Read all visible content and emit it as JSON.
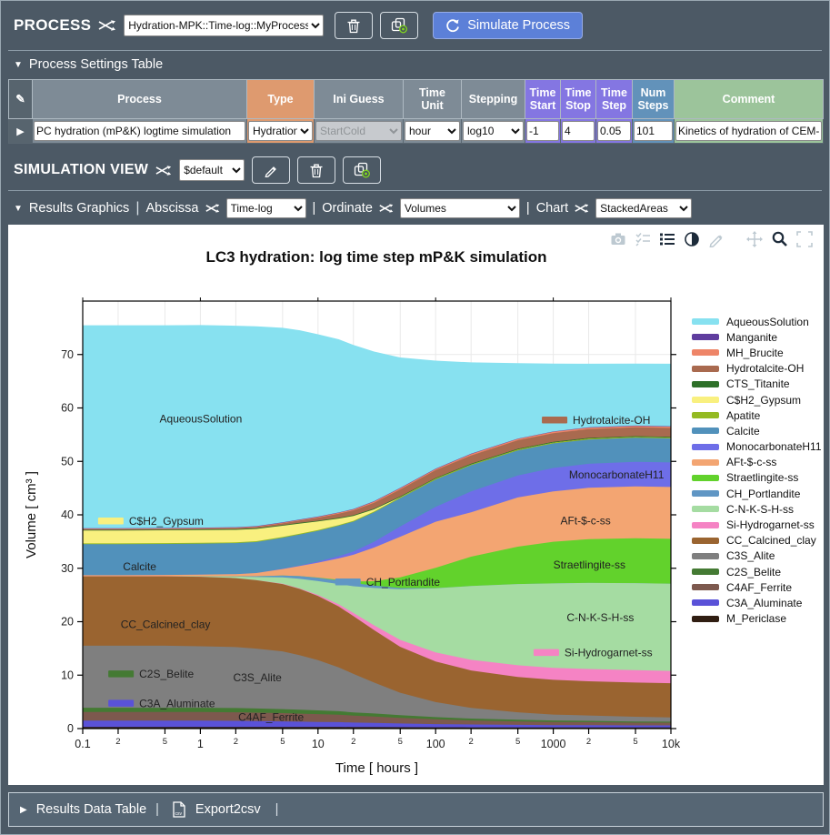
{
  "process_bar": {
    "title": "PROCESS",
    "selector_value": "Hydration-MPK::Time-log::MyProcess",
    "simulate_label": "Simulate Process"
  },
  "settings_section": {
    "title": "Process Settings Table"
  },
  "settings_table": {
    "headers": [
      {
        "label": "Process",
        "color": "#7E8B96"
      },
      {
        "label": "Type",
        "color": "#DE9A6F"
      },
      {
        "label": "Ini Guess",
        "color": "#7E8B96"
      },
      {
        "label": "Time\nUnit",
        "color": "#7E8B96"
      },
      {
        "label": "Stepping",
        "color": "#7E8B96"
      },
      {
        "label": "Time\nStart",
        "color": "#8476E2"
      },
      {
        "label": "Time\nStop",
        "color": "#8476E2"
      },
      {
        "label": "Time\nStep",
        "color": "#8476E2"
      },
      {
        "label": "Num\nSteps",
        "color": "#6292BA"
      },
      {
        "label": "Comment",
        "color": "#9CC49B"
      }
    ],
    "row": {
      "process": "PC hydration (mP&K) logtime simulation",
      "type": "Hydration",
      "ini_guess": "StartCold",
      "time_unit": "hour",
      "stepping": "log10",
      "time_start": "-1",
      "time_stop": "4",
      "time_step": "0.05",
      "num_steps": "101",
      "comment": "Kinetics of hydration of CEM-"
    }
  },
  "simulation_bar": {
    "title": "SIMULATION VIEW",
    "selector_value": "$default"
  },
  "graphics_bar": {
    "section_label": "Results Graphics",
    "abscissa_label": "Abscissa",
    "abscissa_value": "Time-log",
    "ordinate_label": "Ordinate",
    "ordinate_value": "Volumes",
    "chart_label": "Chart",
    "chart_value": "StackedAreas"
  },
  "footer": {
    "results_label": "Results Data Table",
    "export_label": "Export2csv"
  },
  "chart_data": {
    "type": "area",
    "stacked": true,
    "title": "LC3 hydration: log time step mP&K simulation",
    "xlabel": "Time [ hours ]",
    "ylabel": "Volume [ cm³ ]",
    "x_scale": "log",
    "x_range": [
      0.1,
      10000
    ],
    "y_range": [
      0,
      80
    ],
    "grid": true,
    "legend_position": "right",
    "x_ticks": [
      {
        "v": 0.1,
        "label": "0.1",
        "major": true
      },
      {
        "v": 0.2,
        "label": "2",
        "major": false
      },
      {
        "v": 0.5,
        "label": "5",
        "major": false
      },
      {
        "v": 1,
        "label": "1",
        "major": true
      },
      {
        "v": 2,
        "label": "2",
        "major": false
      },
      {
        "v": 5,
        "label": "5",
        "major": false
      },
      {
        "v": 10,
        "label": "10",
        "major": true
      },
      {
        "v": 20,
        "label": "2",
        "major": false
      },
      {
        "v": 50,
        "label": "5",
        "major": false
      },
      {
        "v": 100,
        "label": "100",
        "major": true
      },
      {
        "v": 200,
        "label": "2",
        "major": false
      },
      {
        "v": 500,
        "label": "5",
        "major": false
      },
      {
        "v": 1000,
        "label": "1000",
        "major": true
      },
      {
        "v": 2000,
        "label": "2",
        "major": false
      },
      {
        "v": 5000,
        "label": "5",
        "major": false
      },
      {
        "v": 10000,
        "label": "10k",
        "major": true
      }
    ],
    "y_ticks": [
      0,
      10,
      20,
      30,
      40,
      50,
      60,
      70
    ],
    "x": [
      0.1,
      0.2,
      0.5,
      1,
      2,
      3,
      5,
      7,
      10,
      15,
      20,
      30,
      50,
      100,
      200,
      500,
      1000,
      2000,
      5000,
      10000
    ],
    "series": [
      {
        "name": "M_Periclase",
        "color": "#301E12",
        "values": [
          0.3,
          0.3,
          0.3,
          0.3,
          0.3,
          0.3,
          0.3,
          0.3,
          0.3,
          0.3,
          0.28,
          0.27,
          0.25,
          0.23,
          0.22,
          0.2,
          0.2,
          0.2,
          0.2,
          0.2
        ]
      },
      {
        "name": "C3A_Aluminate",
        "color": "#5A52D8",
        "values": [
          1.2,
          1.2,
          1.2,
          1.2,
          1.15,
          1.1,
          1.05,
          1.0,
          0.95,
          0.9,
          0.85,
          0.8,
          0.7,
          0.6,
          0.55,
          0.5,
          0.45,
          0.45,
          0.4,
          0.4
        ]
      },
      {
        "name": "C4AF_Ferrite",
        "color": "#7D594E",
        "values": [
          1.6,
          1.6,
          1.6,
          1.6,
          1.6,
          1.58,
          1.55,
          1.5,
          1.45,
          1.4,
          1.3,
          1.2,
          1.05,
          0.9,
          0.75,
          0.65,
          0.6,
          0.55,
          0.5,
          0.5
        ]
      },
      {
        "name": "C2S_Belite",
        "color": "#447A33",
        "values": [
          0.8,
          0.8,
          0.8,
          0.8,
          0.8,
          0.78,
          0.75,
          0.72,
          0.7,
          0.65,
          0.6,
          0.55,
          0.5,
          0.42,
          0.35,
          0.3,
          0.27,
          0.25,
          0.22,
          0.2
        ]
      },
      {
        "name": "C3S_Alite",
        "color": "#7F7F7F",
        "values": [
          11.6,
          11.6,
          11.6,
          11.5,
          11.4,
          11.2,
          10.8,
          10.2,
          9.4,
          8.2,
          7.2,
          5.8,
          4.2,
          2.8,
          2.0,
          1.4,
          1.1,
          1.0,
          0.9,
          0.8
        ]
      },
      {
        "name": "CC_Calcined_clay",
        "color": "#9A6430",
        "values": [
          13.0,
          13.0,
          13.0,
          13.0,
          12.9,
          12.8,
          12.6,
          12.4,
          12.0,
          11.4,
          10.8,
          9.8,
          8.6,
          7.6,
          7.0,
          6.6,
          6.5,
          6.4,
          6.4,
          6.4
        ]
      },
      {
        "name": "Si-Hydrogarnet-ss",
        "color": "#F583C4",
        "values": [
          0,
          0,
          0,
          0,
          0,
          0,
          0.05,
          0.1,
          0.2,
          0.4,
          0.6,
          0.9,
          1.3,
          1.7,
          2.0,
          2.2,
          2.25,
          2.3,
          2.3,
          2.3
        ]
      },
      {
        "name": "C-N-K-S-H-ss",
        "color": "#A5DCA2",
        "values": [
          0,
          0,
          0,
          0.1,
          0.3,
          0.6,
          1.2,
          1.8,
          2.6,
          3.8,
          5.0,
          7.0,
          9.5,
          12.0,
          13.8,
          15.2,
          15.8,
          16.1,
          16.3,
          16.3
        ]
      },
      {
        "name": "CH_Portlandite",
        "color": "#6096C4",
        "values": [
          0,
          0,
          0,
          0,
          0.05,
          0.15,
          0.35,
          0.5,
          0.6,
          0.65,
          0.6,
          0.45,
          0.2,
          0.05,
          0,
          0,
          0,
          0,
          0,
          0
        ]
      },
      {
        "name": "Straetlingite-ss",
        "color": "#62D22C",
        "values": [
          0,
          0,
          0,
          0,
          0,
          0,
          0,
          0,
          0.05,
          0.15,
          0.3,
          0.8,
          2.0,
          3.8,
          5.5,
          7.0,
          7.8,
          8.2,
          8.4,
          8.4
        ]
      },
      {
        "name": "AFt-$-c-ss",
        "color": "#F3A572",
        "values": [
          0.2,
          0.2,
          0.25,
          0.3,
          0.4,
          0.6,
          1.2,
          1.9,
          2.8,
          4.0,
          5.0,
          6.3,
          7.6,
          8.6,
          8.3,
          9.2,
          9.4,
          9.6,
          9.7,
          9.7
        ]
      },
      {
        "name": "MonocarbonateH11",
        "color": "#6E6EE8",
        "values": [
          0,
          0,
          0,
          0,
          0,
          0,
          0.05,
          0.1,
          0.2,
          0.4,
          0.6,
          1.1,
          1.9,
          2.8,
          3.9,
          4.1,
          4.4,
          4.5,
          4.6,
          4.6
        ]
      },
      {
        "name": "Calcite",
        "color": "#5191BB",
        "values": [
          5.8,
          5.8,
          5.8,
          5.8,
          5.8,
          5.8,
          5.8,
          5.8,
          5.75,
          5.7,
          5.6,
          5.5,
          5.3,
          5.1,
          4.9,
          4.7,
          4.6,
          4.55,
          4.5,
          4.5
        ]
      },
      {
        "name": "Apatite",
        "color": "#94BA22",
        "values": [
          0.15,
          0.15,
          0.15,
          0.15,
          0.15,
          0.15,
          0.15,
          0.15,
          0.15,
          0.15,
          0.15,
          0.15,
          0.15,
          0.15,
          0.15,
          0.15,
          0.15,
          0.15,
          0.15,
          0.15
        ]
      },
      {
        "name": "C$H2_Gypsum",
        "color": "#F9F07F",
        "values": [
          2.4,
          2.4,
          2.4,
          2.4,
          2.35,
          2.3,
          2.1,
          1.9,
          1.6,
          1.2,
          0.9,
          0.4,
          0.05,
          0,
          0,
          0,
          0,
          0,
          0,
          0
        ]
      },
      {
        "name": "CTS_Titanite",
        "color": "#2E7029",
        "values": [
          0.15,
          0.15,
          0.15,
          0.15,
          0.15,
          0.15,
          0.15,
          0.15,
          0.15,
          0.15,
          0.15,
          0.15,
          0.15,
          0.15,
          0.15,
          0.15,
          0.15,
          0.15,
          0.15,
          0.15
        ]
      },
      {
        "name": "Hydrotalcite-OH",
        "color": "#A96A4F",
        "values": [
          0.1,
          0.1,
          0.1,
          0.12,
          0.15,
          0.2,
          0.3,
          0.4,
          0.55,
          0.75,
          0.9,
          1.1,
          1.3,
          1.45,
          1.55,
          1.6,
          1.6,
          1.65,
          1.65,
          1.65
        ]
      },
      {
        "name": "MH_Brucite",
        "color": "#EE8568",
        "values": [
          0.1,
          0.1,
          0.1,
          0.1,
          0.1,
          0.1,
          0.12,
          0.13,
          0.15,
          0.17,
          0.18,
          0.2,
          0.21,
          0.22,
          0.23,
          0.24,
          0.25,
          0.25,
          0.25,
          0.25
        ]
      },
      {
        "name": "Manganite",
        "color": "#5F3D9E",
        "values": [
          0.08,
          0.08,
          0.08,
          0.08,
          0.08,
          0.08,
          0.08,
          0.08,
          0.08,
          0.08,
          0.08,
          0.08,
          0.08,
          0.08,
          0.08,
          0.08,
          0.08,
          0.08,
          0.08,
          0.08
        ]
      },
      {
        "name": "AqueousSolution",
        "color": "#87E1F0",
        "values": [
          38.0,
          38.0,
          37.95,
          37.9,
          37.7,
          37.4,
          36.4,
          35.4,
          34.1,
          32.4,
          30.7,
          28.0,
          24.4,
          20.2,
          17.1,
          14.1,
          12.7,
          11.9,
          11.6,
          11.7
        ]
      }
    ],
    "annotations": [
      {
        "label": "AqueousSolution",
        "x": 0.45,
        "y": 58,
        "swatch": null
      },
      {
        "label": "C$H2_Gypsum",
        "x": 0.135,
        "y": 38.8,
        "swatch": "#F9F07F"
      },
      {
        "label": "Calcite",
        "x": 0.22,
        "y": 30.3,
        "swatch": null
      },
      {
        "label": "CC_Calcined_clay",
        "x": 0.21,
        "y": 19.5,
        "swatch": null
      },
      {
        "label": "C2S_Belite",
        "x": 0.165,
        "y": 10.2,
        "swatch": "#447A33"
      },
      {
        "label": "C3A_Aluminate",
        "x": 0.165,
        "y": 4.7,
        "swatch": "#5A52D8"
      },
      {
        "label": "C3S_Alite",
        "x": 1.9,
        "y": 9.5,
        "swatch": null
      },
      {
        "label": "C4AF_Ferrite",
        "x": 2.1,
        "y": 2.1,
        "swatch": null
      },
      {
        "label": "CH_Portlandite",
        "x": 14,
        "y": 27.4,
        "swatch": "#6096C4"
      },
      {
        "label": "Hydrotalcite-OH",
        "x": 800,
        "y": 57.7,
        "swatch": "#A96A4F"
      },
      {
        "label": "MonocarbonateH11",
        "x": 1360,
        "y": 47.5,
        "swatch": null
      },
      {
        "label": "AFt-$-c-ss",
        "x": 1150,
        "y": 38.9,
        "swatch": null
      },
      {
        "label": "Straetlingite-ss",
        "x": 1000,
        "y": 30.6,
        "swatch": null
      },
      {
        "label": "C-N-K-S-H-ss",
        "x": 1300,
        "y": 20.8,
        "swatch": null
      },
      {
        "label": "Si-Hydrogarnet-ss",
        "x": 680,
        "y": 14.2,
        "swatch": "#F583C4"
      }
    ]
  }
}
